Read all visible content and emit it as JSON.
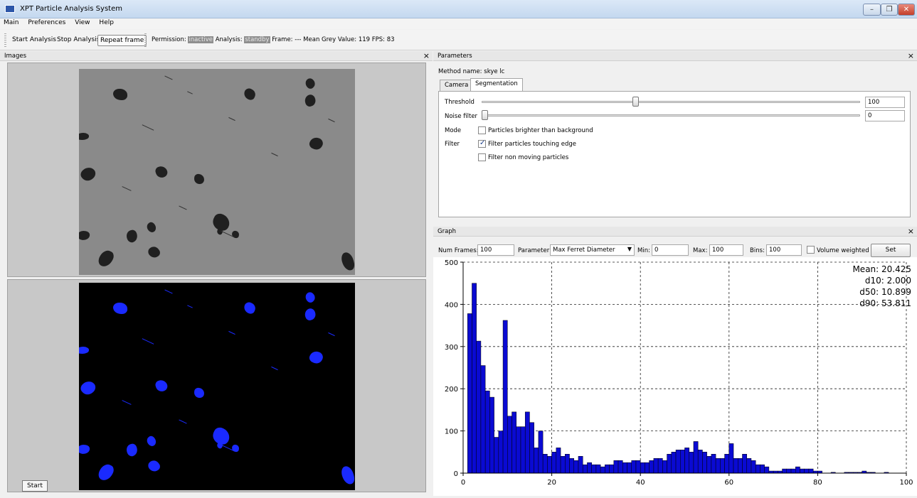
{
  "window": {
    "title": "XPT Particle Analysis System"
  },
  "menu": [
    "Main",
    "Preferences",
    "View",
    "Help"
  ],
  "toolbar": {
    "start": "Start Analysis",
    "stop": "Stop Analysis",
    "repeat": "Repeat frame",
    "permission_label": "Permission:",
    "permission_value": "inactive",
    "analysis_label": "Analysis:",
    "analysis_value": "standby",
    "frame_label": "Frame:",
    "frame_value": "---",
    "mean_grey_label": "Mean Grey Value:",
    "mean_grey_value": "119",
    "fps_label": "FPS:",
    "fps_value": "83"
  },
  "images_panel": {
    "title": "Images",
    "close": "×"
  },
  "parameters": {
    "title": "Parameters",
    "close": "×",
    "method_label": "Method name:",
    "method_value": "skye lc",
    "tabs": [
      "Camera",
      "Segmentation"
    ],
    "active_tab": "Segmentation",
    "threshold": {
      "label": "Threshold",
      "value": "100",
      "level": 0.405
    },
    "noise_filter": {
      "label": "Noise filter",
      "value": "0",
      "level": 0.0
    },
    "mode_label": "Mode",
    "mode_option": "Particles brighter than background",
    "mode_checked": false,
    "filter_label": "Filter",
    "filter_edge": "Filter particles touching edge",
    "filter_edge_checked": true,
    "filter_moving": "Filter non moving particles",
    "filter_moving_checked": false
  },
  "graph": {
    "title": "Graph",
    "close": "×",
    "num_frames_label": "Num Frames:",
    "num_frames_value": "100",
    "parameter_label": "Parameter",
    "parameter_value": "Max Ferret Diameter",
    "min_label": "Min:",
    "min_value": "0",
    "max_label": "Max:",
    "max_value": "100",
    "bins_label": "Bins:",
    "bins_value": "100",
    "volume_weighted_label": "Volume weighted",
    "volume_weighted_checked": false,
    "set_label": "Set"
  },
  "chart_data": {
    "type": "bar",
    "bar_color": "#0a0ad2",
    "x_range": [
      0,
      100
    ],
    "y_range": [
      0,
      500
    ],
    "x_ticks": [
      "0",
      "20",
      "40",
      "60",
      "80",
      "100"
    ],
    "y_ticks": [
      "0",
      "100",
      "200",
      "300",
      "400",
      "500"
    ],
    "grid": "dashed",
    "bins_start": 0,
    "bin_width": 1,
    "values": [
      0,
      378,
      450,
      313,
      255,
      195,
      180,
      85,
      100,
      362,
      135,
      145,
      110,
      110,
      145,
      120,
      60,
      100,
      45,
      40,
      50,
      60,
      40,
      45,
      35,
      30,
      40,
      20,
      25,
      20,
      20,
      15,
      20,
      20,
      30,
      30,
      25,
      25,
      30,
      30,
      25,
      25,
      30,
      35,
      35,
      30,
      45,
      50,
      55,
      55,
      60,
      50,
      75,
      55,
      50,
      40,
      45,
      35,
      35,
      45,
      70,
      35,
      35,
      45,
      35,
      30,
      20,
      20,
      15,
      5,
      5,
      5,
      10,
      10,
      10,
      15,
      10,
      10,
      10,
      5,
      5,
      0,
      0,
      2,
      0,
      0,
      2,
      2,
      2,
      2,
      5,
      2,
      2,
      0,
      0,
      2,
      0,
      0,
      0,
      0
    ],
    "annotations": [
      "Mean: 20.425",
      "d10: 2.000",
      "d50: 10.899",
      "d90: 53.811"
    ]
  },
  "taskbar": {
    "start_label": "Start"
  },
  "colors": {
    "particle_blue": "#1a2aff",
    "particle_dark": "#202020",
    "raw_background": "#8a8a8a"
  }
}
